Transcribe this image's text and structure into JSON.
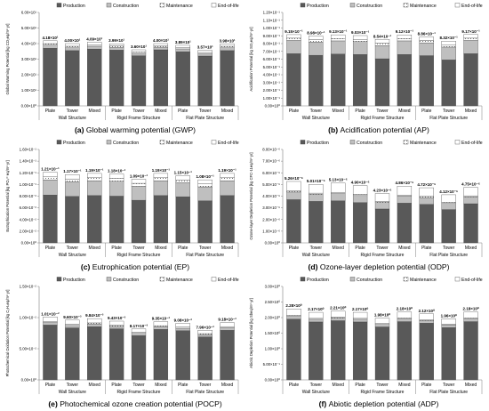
{
  "figure": {
    "legend_labels": [
      "Production",
      "Construction",
      "Maintenance",
      "End-of-life"
    ],
    "structure_labels": [
      "Wall Structure",
      "Rigid Frame Structure",
      "Flat Plate Structure"
    ],
    "colors": {
      "production": "#595959",
      "construction": "#bfbfbf",
      "maintenance": "#f2f2f2",
      "end_of_life": "#ffffff",
      "axis": "#7f7f7f",
      "text": "#000000"
    }
  },
  "chart_data": [
    {
      "type": "bar",
      "stacked": true,
      "panel_label": "(a)",
      "caption": "Global warming potential (GWP)",
      "ylabel": "Global Warming Potential [kg CO₂eq/m²·yr]",
      "ylim": [
        0,
        6
      ],
      "yticks": [
        "0.00×10⁰",
        "1.00×10¹",
        "2.00×10¹",
        "3.00×10¹",
        "4.00×10¹",
        "5.00×10¹",
        "6.00×10¹"
      ],
      "categories": [
        "Plate",
        "Tower",
        "Mixed",
        "Plate",
        "Tower",
        "Mixed",
        "Plate",
        "Tower",
        "Mixed"
      ],
      "groups": [
        "Wall Structure",
        "Rigid Frame Structure",
        "Flat Plate Structure"
      ],
      "total_labels": [
        "4.18×10¹",
        "4.00×10¹",
        "4.09×10¹",
        "3.99×10¹",
        "3.60×10¹",
        "4.00×10¹",
        "3.89×10¹",
        "3.57×10¹",
        "3.98×10¹"
      ],
      "series": [
        {
          "name": "Production",
          "values": [
            3.7,
            3.55,
            3.65,
            3.58,
            3.22,
            3.6,
            3.48,
            3.2,
            3.55
          ]
        },
        {
          "name": "Construction",
          "values": [
            0.2,
            0.18,
            0.18,
            0.17,
            0.15,
            0.17,
            0.18,
            0.14,
            0.18
          ]
        },
        {
          "name": "Maintenance",
          "values": [
            0.1,
            0.1,
            0.1,
            0.1,
            0.09,
            0.1,
            0.09,
            0.09,
            0.1
          ]
        },
        {
          "name": "End-of-life",
          "values": [
            0.18,
            0.17,
            0.16,
            0.14,
            0.14,
            0.13,
            0.14,
            0.14,
            0.15
          ]
        }
      ]
    },
    {
      "type": "bar",
      "stacked": true,
      "panel_label": "(b)",
      "caption": "Acidification potential (AP)",
      "ylabel": "Acidification Potential [kg SO₂eq/m²·yr]",
      "ylim": [
        0,
        12
      ],
      "yticks": [
        "0.00×10⁰",
        "1.00×10⁻¹",
        "2.00×10⁻¹",
        "3.00×10⁻¹",
        "4.00×10⁻¹",
        "5.00×10⁻¹",
        "6.00×10⁻¹",
        "7.00×10⁻¹",
        "8.00×10⁻¹",
        "9.00×10⁻¹",
        "1.00×10⁻¹",
        "1.10×10⁻¹",
        "1.20×10⁻¹"
      ],
      "categories": [
        "Plate",
        "Tower",
        "Mixed",
        "Plate",
        "Tower",
        "Mixed",
        "Plate",
        "Tower",
        "Mixed"
      ],
      "groups": [
        "Wall Structure",
        "Rigid Frame Structure",
        "Flat Plate Structure"
      ],
      "total_labels": [
        "9.15×10⁻¹",
        "8.98×10⁻¹",
        "9.13×10⁻¹",
        "9.03×10⁻¹",
        "8.54×10⁻¹",
        "9.12×10⁻¹",
        "8.86×10⁻¹",
        "8.32×10⁻¹",
        "9.17×10⁻¹"
      ],
      "series": [
        {
          "name": "Production",
          "values": [
            6.7,
            6.5,
            6.65,
            6.6,
            6.05,
            6.6,
            6.45,
            5.9,
            6.7
          ]
        },
        {
          "name": "Construction",
          "values": [
            1.7,
            1.7,
            1.7,
            1.65,
            1.7,
            1.75,
            1.65,
            1.65,
            1.7
          ]
        },
        {
          "name": "Maintenance",
          "values": [
            0.3,
            0.3,
            0.3,
            0.3,
            0.3,
            0.3,
            0.3,
            0.3,
            0.3
          ]
        },
        {
          "name": "End-of-life",
          "values": [
            0.45,
            0.48,
            0.48,
            0.48,
            0.49,
            0.47,
            0.46,
            0.47,
            0.47
          ]
        }
      ]
    },
    {
      "type": "bar",
      "stacked": true,
      "panel_label": "(c)",
      "caption": "Eutrophication potential (EP)",
      "ylabel": "Eutrophication Potential [kg PO₄³⁻eq/m²·yr]",
      "ylim": [
        0,
        16
      ],
      "yticks": [
        "0.00×10⁰",
        "2.00×10⁻²",
        "4.00×10⁻²",
        "6.00×10⁻²",
        "8.00×10⁻²",
        "1.00×10⁻¹",
        "1.20×10⁻¹",
        "1.40×10⁻¹",
        "1.60×10⁻¹"
      ],
      "categories": [
        "Plate",
        "Tower",
        "Mixed",
        "Plate",
        "Tower",
        "Mixed",
        "Plate",
        "Tower",
        "Mixed"
      ],
      "groups": [
        "Wall Structure",
        "Rigid Frame Structure",
        "Flat Plate Structure"
      ],
      "total_labels": [
        "1.21×10⁻¹",
        "1.17×10⁻¹",
        "1.19×10⁻¹",
        "1.18×10⁻¹",
        "1.09×10⁻¹",
        "1.19×10⁻¹",
        "1.15×10⁻¹",
        "1.08×10⁻¹",
        "1.19×10⁻¹"
      ],
      "series": [
        {
          "name": "Production",
          "values": [
            8.2,
            7.95,
            8.1,
            8.0,
            7.3,
            8.1,
            7.9,
            7.2,
            8.1
          ]
        },
        {
          "name": "Construction",
          "values": [
            2.6,
            2.5,
            2.55,
            2.55,
            2.4,
            2.55,
            2.4,
            2.4,
            2.55
          ]
        },
        {
          "name": "Maintenance",
          "values": [
            0.5,
            0.5,
            0.5,
            0.5,
            0.5,
            0.5,
            0.5,
            0.5,
            0.5
          ]
        },
        {
          "name": "End-of-life",
          "values": [
            0.8,
            0.75,
            0.75,
            0.75,
            0.7,
            0.75,
            0.7,
            0.7,
            0.75
          ]
        }
      ]
    },
    {
      "type": "bar",
      "stacked": true,
      "panel_label": "(d)",
      "caption": "Ozone-layer depletion potential (ODP)",
      "ylabel": "Ozone-layer Depletion Potential [kg CFC-11eq/m²·yr]",
      "ylim": [
        0,
        8
      ],
      "yticks": [
        "0.00×10⁰",
        "1.00×10⁻⁶",
        "2.00×10⁻⁶",
        "3.00×10⁻⁶",
        "4.00×10⁻⁶",
        "5.00×10⁻⁶",
        "6.00×10⁻⁶",
        "7.00×10⁻⁶",
        "8.00×10⁻⁶"
      ],
      "categories": [
        "Plate",
        "Tower",
        "Mixed",
        "Plate",
        "Tower",
        "Mixed",
        "Plate",
        "Tower",
        "Mixed"
      ],
      "groups": [
        "Wall Structure",
        "Rigid Frame Structure",
        "Flat Plate Structure"
      ],
      "total_labels": [
        "5.26×10⁻⁶",
        "5.01×10⁻⁶",
        "5.13×10⁻⁶",
        "4.90×10⁻⁶",
        "4.23×10⁻⁶",
        "4.86×10⁻⁶",
        "4.72×10⁻⁶",
        "4.12×10⁻⁶",
        "4.75×10⁻⁶"
      ],
      "series": [
        {
          "name": "Production",
          "values": [
            3.7,
            3.55,
            3.6,
            3.45,
            2.9,
            3.4,
            3.3,
            2.85,
            3.35
          ]
        },
        {
          "name": "Construction",
          "values": [
            0.65,
            0.6,
            0.62,
            0.6,
            0.55,
            0.6,
            0.58,
            0.52,
            0.58
          ]
        },
        {
          "name": "Maintenance",
          "values": [
            0.11,
            0.11,
            0.11,
            0.1,
            0.1,
            0.1,
            0.1,
            0.1,
            0.1
          ]
        },
        {
          "name": "End-of-life",
          "values": [
            0.8,
            0.75,
            0.8,
            0.75,
            0.68,
            0.76,
            0.74,
            0.65,
            0.72
          ]
        }
      ]
    },
    {
      "type": "bar",
      "stacked": true,
      "panel_label": "(e)",
      "caption": "Photochemical ozone creation potential (POCP)",
      "ylabel": "Photochemical Oxidation Potential [kg C₂H₄eq/m²·yr]",
      "ylim": [
        0,
        15
      ],
      "yticks": [
        "0.00×10⁰",
        "5.00×10⁻²",
        "1.00×10⁻²",
        "1.50×10⁻²"
      ],
      "categories": [
        "Plate",
        "Tower",
        "Mixed",
        "Plate",
        "Tower",
        "Mixed",
        "Plate",
        "Tower",
        "Mixed"
      ],
      "groups": [
        "Wall Structure",
        "Rigid Frame Structure",
        "Flat Plate Structure"
      ],
      "total_labels": [
        "1.01×10⁻²",
        "9.60×10⁻³",
        "9.84×10⁻³",
        "9.43×10⁻³",
        "8.17×10⁻³",
        "9.35×10⁻³",
        "9.08×10⁻³",
        "7.96×10⁻³",
        "9.18×10⁻³"
      ],
      "series": [
        {
          "name": "Production",
          "values": [
            8.8,
            8.35,
            8.55,
            8.2,
            7.1,
            8.1,
            7.9,
            6.9,
            7.95
          ]
        },
        {
          "name": "Construction",
          "values": [
            0.4,
            0.38,
            0.4,
            0.38,
            0.35,
            0.4,
            0.38,
            0.35,
            0.4
          ]
        },
        {
          "name": "Maintenance",
          "values": [
            0.2,
            0.2,
            0.2,
            0.2,
            0.18,
            0.2,
            0.2,
            0.18,
            0.2
          ]
        },
        {
          "name": "End-of-life",
          "values": [
            0.7,
            0.67,
            0.69,
            0.65,
            0.54,
            0.65,
            0.6,
            0.53,
            0.63
          ]
        }
      ]
    },
    {
      "type": "bar",
      "stacked": true,
      "panel_label": "(f)",
      "caption": "Abiotic depletion potential (ADP)",
      "ylabel": "Abiotic Depletion Potential [kg Sbeq/m²·yr]",
      "ylim": [
        0,
        30
      ],
      "yticks": [
        "0.00×10⁰",
        "5.00×10⁻¹",
        "1.00×10⁰",
        "1.50×10⁰",
        "2.00×10⁰",
        "2.50×10⁰",
        "3.00×10⁰"
      ],
      "categories": [
        "Plate",
        "Tower",
        "Mixed",
        "Plate",
        "Tower",
        "Mixed",
        "Plate",
        "Tower",
        "Mixed"
      ],
      "groups": [
        "Wall Structure",
        "Rigid Frame Structure",
        "Flat Plate Structure"
      ],
      "total_labels": [
        "2.28×10⁰",
        "2.17×10⁰",
        "2.21×10⁰",
        "2.17×10⁰",
        "1.98×10⁰",
        "2.18×10⁰",
        "2.12×10⁰",
        "1.96×10⁰",
        "2.18×10⁰"
      ],
      "series": [
        {
          "name": "Production",
          "values": [
            19.5,
            18.6,
            19.0,
            18.6,
            17.0,
            18.7,
            18.2,
            16.8,
            18.7
          ]
        },
        {
          "name": "Construction",
          "values": [
            0.9,
            0.85,
            0.85,
            0.85,
            0.8,
            0.85,
            0.82,
            0.78,
            0.85
          ]
        },
        {
          "name": "Maintenance",
          "values": [
            0.3,
            0.3,
            0.3,
            0.3,
            0.28,
            0.3,
            0.3,
            0.28,
            0.3
          ]
        },
        {
          "name": "End-of-life",
          "values": [
            2.1,
            1.95,
            1.95,
            1.95,
            1.72,
            1.95,
            1.88,
            1.74,
            1.95
          ]
        }
      ]
    }
  ]
}
